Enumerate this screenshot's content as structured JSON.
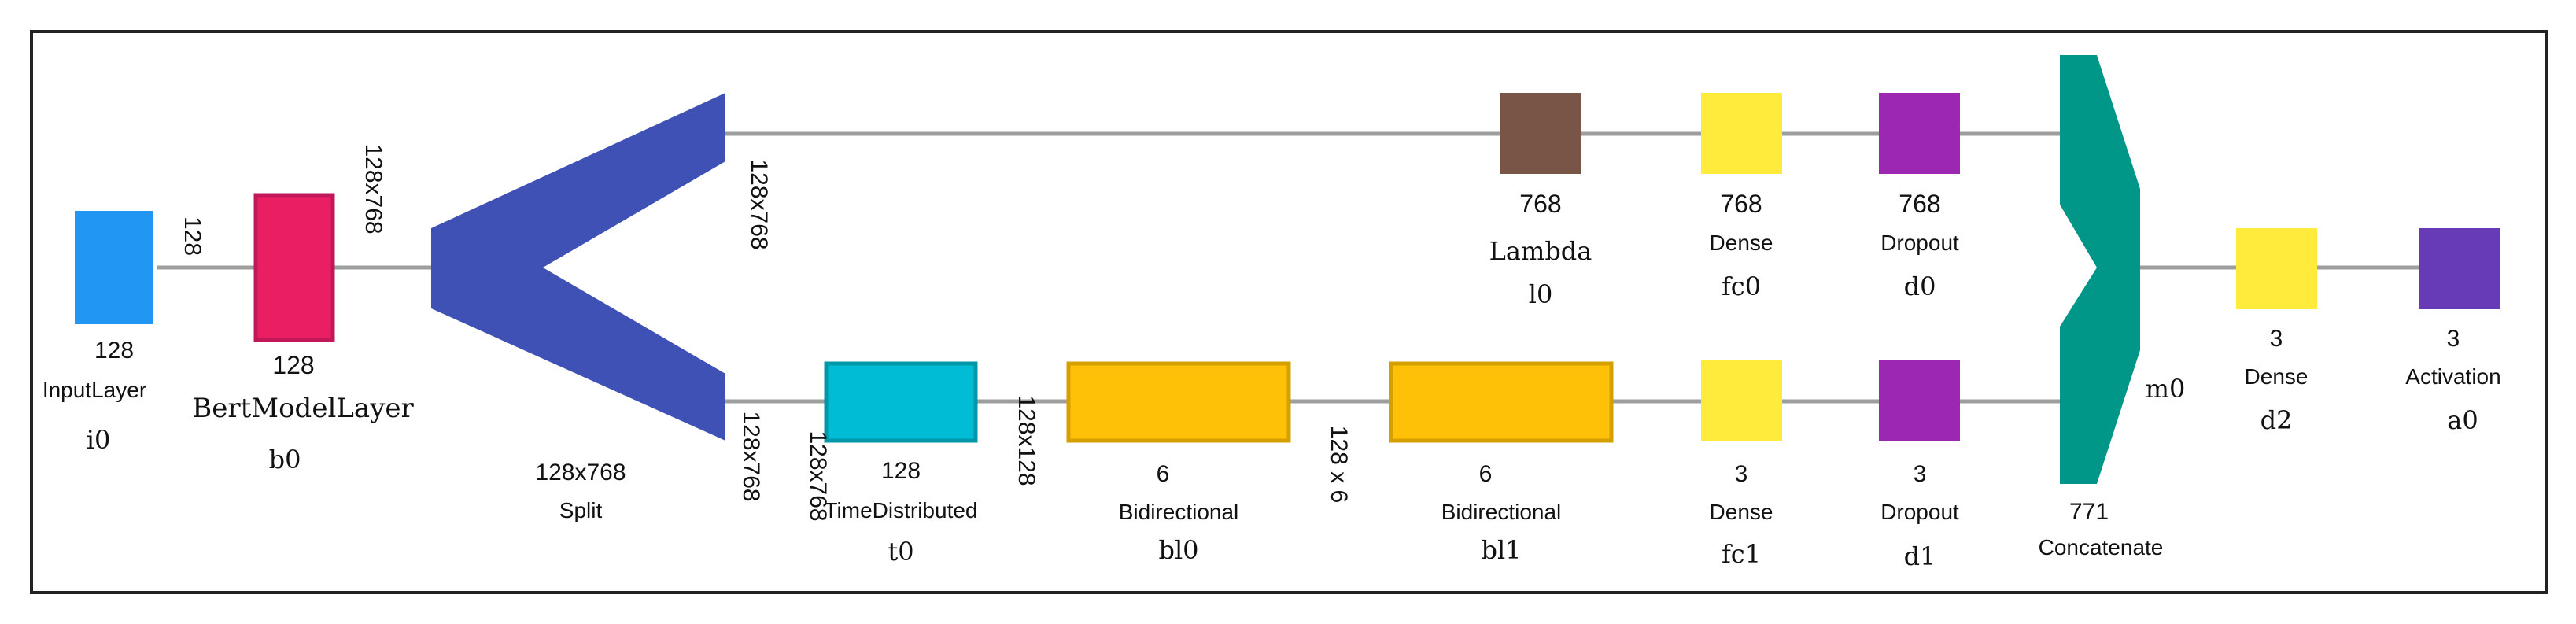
{
  "colors": {
    "input": "#2196F3",
    "bert": "#E91E63",
    "split": "#3F51B5",
    "timedist": "#00BCD4",
    "bidirectional": "#FFC107",
    "lambda": "#795548",
    "dense": "#FFEB3B",
    "dropout": "#9C27B0",
    "concat": "#009688",
    "activation": "#673AB7",
    "edge": "#9E9E9E"
  },
  "nodes": {
    "input": {
      "size": "128",
      "type": "InputLayer",
      "id": "i0"
    },
    "bert": {
      "size": "128",
      "type": "BertModelLayer",
      "id": "b0"
    },
    "split": {
      "size": "128x768",
      "type": "Split"
    },
    "lambda": {
      "size": "768",
      "type": "Lambda",
      "id": "l0"
    },
    "fc0": {
      "size": "768",
      "type": "Dense",
      "id": "fc0"
    },
    "d0": {
      "size": "768",
      "type": "Dropout",
      "id": "d0"
    },
    "t0": {
      "size": "128",
      "type": "TimeDistributed",
      "id": "t0"
    },
    "bl0": {
      "size": "6",
      "type": "Bidirectional",
      "id": "bl0"
    },
    "bl1": {
      "size": "6",
      "type": "Bidirectional",
      "id": "bl1"
    },
    "fc1": {
      "size": "3",
      "type": "Dense",
      "id": "fc1"
    },
    "d1": {
      "size": "3",
      "type": "Dropout",
      "id": "d1"
    },
    "concat": {
      "size": "771",
      "type": "Concatenate",
      "id": "m0"
    },
    "d2": {
      "size": "3",
      "type": "Dense",
      "id": "d2"
    },
    "a0": {
      "size": "3",
      "type": "Activation",
      "id": "a0"
    }
  },
  "edges": {
    "input_bert": "128",
    "bert_split": "128x768",
    "split_top": "128x768",
    "split_bottom": "128x768",
    "split_t0": "128x768",
    "t0_bl0": "128x128",
    "bl0_bl1": "128 x 6"
  }
}
